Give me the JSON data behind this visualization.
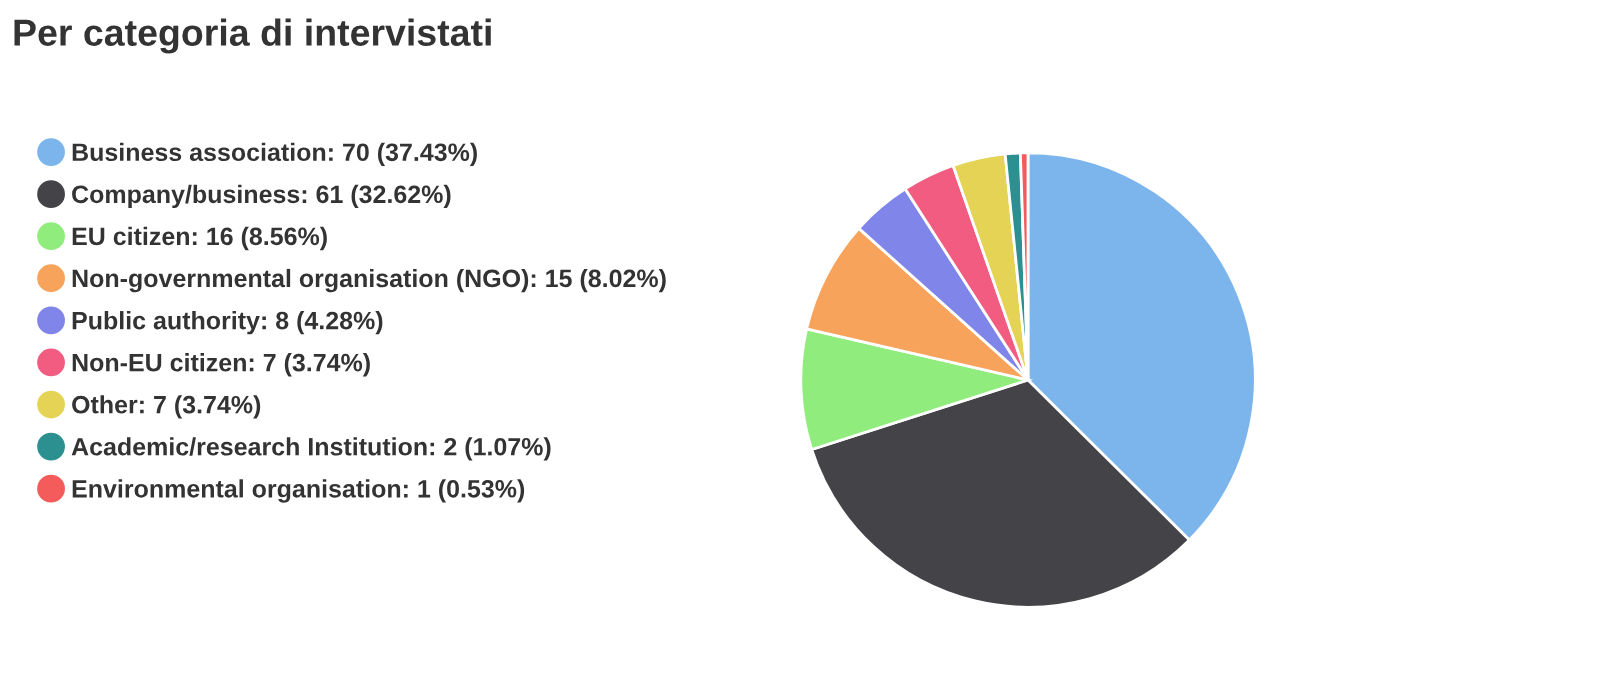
{
  "chart_data": {
    "type": "pie",
    "title": "Per categoria di intervistati",
    "categories": [
      "Business association: 70 (37.43%)",
      "Company/business: 61 (32.62%)",
      "EU citizen: 16 (8.56%)",
      "Non-governmental organisation (NGO): 15 (8.02%)",
      "Public authority: 8 (4.28%)",
      "Non-EU citizen: 7 (3.74%)",
      "Other: 7 (3.74%)",
      "Academic/research Institution: 2 (1.07%)",
      "Environmental organisation: 1 (0.53%)"
    ],
    "values": [
      70,
      61,
      16,
      15,
      8,
      7,
      7,
      2,
      1
    ],
    "colors": [
      "#7cb5ec",
      "#434348",
      "#90ed7d",
      "#f7a35c",
      "#8085e9",
      "#f15c80",
      "#e4d354",
      "#2b908f",
      "#f45b5b"
    ],
    "legend": "left"
  }
}
